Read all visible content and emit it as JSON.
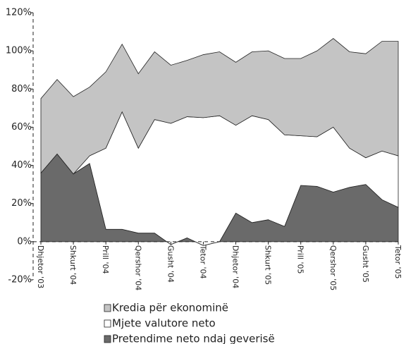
{
  "chart_data": {
    "type": "stacked_area",
    "categories": [
      "Dhjetor '03",
      null,
      "Shkurt '04",
      null,
      "Prill '04",
      null,
      "Qershor '04",
      null,
      "Gusht '04",
      null,
      "Tetor '04",
      null,
      "Dhjetor '04",
      null,
      "Shkurt '05",
      null,
      "Prill '05",
      null,
      "Qershor '05",
      null,
      "Gusht '05",
      null,
      "Tetor '05"
    ],
    "series": [
      {
        "name": "Kredia për ekonominë",
        "color": "#c4c4c4",
        "values": [
          39,
          39,
          40.5,
          36,
          40,
          35.5,
          39,
          35.5,
          30.5,
          29.5,
          33,
          33.5,
          33,
          33.5,
          36,
          40,
          40.5,
          45,
          46.5,
          50.5,
          54.5,
          57.5,
          60
        ]
      },
      {
        "name": "Mjete valutore neto",
        "color": "#ffffff",
        "values": [
          0,
          0,
          0,
          4,
          42.5,
          61.5,
          44.5,
          59.5,
          63.5,
          63.5,
          67,
          66,
          46,
          56,
          52.5,
          48,
          26,
          26,
          34,
          20.5,
          14,
          25.5,
          27
        ]
      },
      {
        "name": "Pretendime neto ndaj geverisë",
        "color": "#6a6a6a",
        "values": [
          36,
          46,
          35.5,
          41,
          6.5,
          6.5,
          4.5,
          4.5,
          -1.5,
          2,
          -2,
          0,
          15,
          10,
          11.5,
          8,
          29.5,
          29,
          26,
          28.5,
          30,
          22,
          18
        ]
      }
    ],
    "ylim": [
      -20,
      120
    ],
    "yticks": [
      {
        "value": -20,
        "label": "-20%"
      },
      {
        "value": 0,
        "label": "0%"
      },
      {
        "value": 20,
        "label": "20%"
      },
      {
        "value": 40,
        "label": "40%"
      },
      {
        "value": 60,
        "label": "60%"
      },
      {
        "value": 80,
        "label": "80%"
      },
      {
        "value": 100,
        "label": "100%"
      },
      {
        "value": 120,
        "label": "120%"
      }
    ]
  }
}
